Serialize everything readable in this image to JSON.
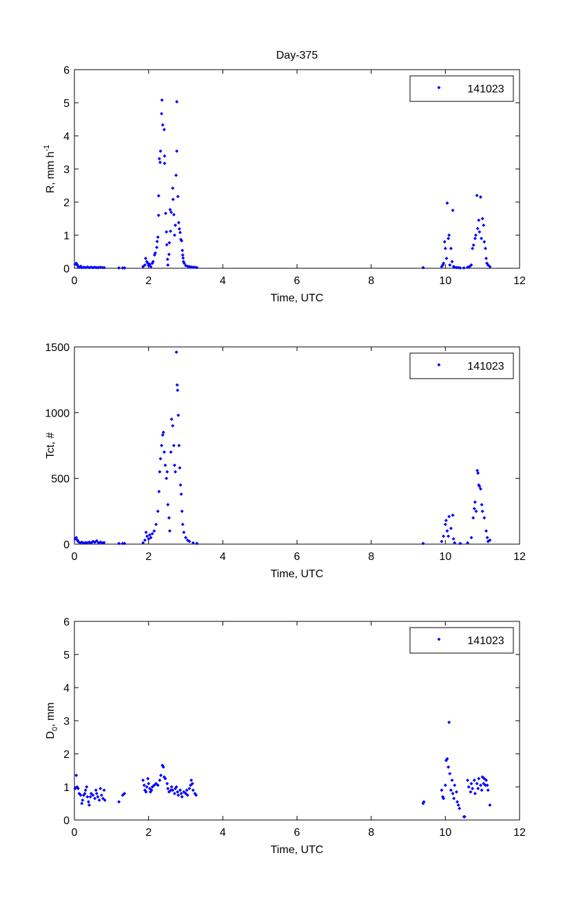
{
  "title": "Day-375",
  "colors": {
    "marker": "#0000ff",
    "axis": "#000000"
  },
  "chart_data": [
    {
      "type": "scatter",
      "xlabel": "Time, UTC",
      "ylabel_parts": {
        "base": "R, mm h",
        "sup": "-1"
      },
      "xlim": [
        0,
        12
      ],
      "ylim": [
        0,
        6
      ],
      "xticks": [
        "0",
        "2",
        "4",
        "6",
        "8",
        "10",
        "12"
      ],
      "yticks": [
        "0",
        "1",
        "2",
        "3",
        "4",
        "5",
        "6"
      ],
      "legend": {
        "label": "141023",
        "position": "top-right"
      },
      "points": [
        [
          0.02,
          0.12
        ],
        [
          0.05,
          0.15
        ],
        [
          0.08,
          0.1
        ],
        [
          0.1,
          0.05
        ],
        [
          0.13,
          0.03
        ],
        [
          0.17,
          0.06
        ],
        [
          0.2,
          0.02
        ],
        [
          0.25,
          0.03
        ],
        [
          0.3,
          0.02
        ],
        [
          0.35,
          0.04
        ],
        [
          0.4,
          0.02
        ],
        [
          0.45,
          0.03
        ],
        [
          0.5,
          0.02
        ],
        [
          0.55,
          0.03
        ],
        [
          0.6,
          0.02
        ],
        [
          0.65,
          0.02
        ],
        [
          0.7,
          0.03
        ],
        [
          0.75,
          0.02
        ],
        [
          0.8,
          0.02
        ],
        [
          1.2,
          0.01
        ],
        [
          1.3,
          0.01
        ],
        [
          1.35,
          0.01
        ],
        [
          1.85,
          0.05
        ],
        [
          1.9,
          0.1
        ],
        [
          1.92,
          0.3
        ],
        [
          1.95,
          0.2
        ],
        [
          1.98,
          0.15
        ],
        [
          2.0,
          0.08
        ],
        [
          2.03,
          0.12
        ],
        [
          2.06,
          0.05
        ],
        [
          2.1,
          0.15
        ],
        [
          2.12,
          0.2
        ],
        [
          2.16,
          0.4
        ],
        [
          2.18,
          0.46
        ],
        [
          2.22,
          0.63
        ],
        [
          2.23,
          0.81
        ],
        [
          2.25,
          0.94
        ],
        [
          2.27,
          1.6
        ],
        [
          2.27,
          2.19
        ],
        [
          2.29,
          3.31
        ],
        [
          2.31,
          3.2
        ],
        [
          2.32,
          3.54
        ],
        [
          2.35,
          4.67
        ],
        [
          2.36,
          5.08
        ],
        [
          2.38,
          4.33
        ],
        [
          2.42,
          4.19
        ],
        [
          2.43,
          3.39
        ],
        [
          2.43,
          3.17
        ],
        [
          2.46,
          1.66
        ],
        [
          2.48,
          1.1
        ],
        [
          2.49,
          0.71
        ],
        [
          2.51,
          0.27
        ],
        [
          2.52,
          0.1
        ],
        [
          2.55,
          0.42
        ],
        [
          2.56,
          0.77
        ],
        [
          2.58,
          1.77
        ],
        [
          2.59,
          1.12
        ],
        [
          2.61,
          1.69
        ],
        [
          2.65,
          2.42
        ],
        [
          2.66,
          2.08
        ],
        [
          2.68,
          1.62
        ],
        [
          2.7,
          1.0
        ],
        [
          2.72,
          1.3
        ],
        [
          2.74,
          2.81
        ],
        [
          2.76,
          5.03
        ],
        [
          2.76,
          3.54
        ],
        [
          2.79,
          2.17
        ],
        [
          2.81,
          1.38
        ],
        [
          2.83,
          1.19
        ],
        [
          2.85,
          1.08
        ],
        [
          2.87,
          0.87
        ],
        [
          2.89,
          0.83
        ],
        [
          2.91,
          0.54
        ],
        [
          2.92,
          0.4
        ],
        [
          2.93,
          0.31
        ],
        [
          2.94,
          0.2
        ],
        [
          2.96,
          0.15
        ],
        [
          3.0,
          0.08
        ],
        [
          3.05,
          0.06
        ],
        [
          3.1,
          0.05
        ],
        [
          3.15,
          0.04
        ],
        [
          3.2,
          0.03
        ],
        [
          3.25,
          0.03
        ],
        [
          3.3,
          0.02
        ],
        [
          9.4,
          0.02
        ],
        [
          9.9,
          0.05
        ],
        [
          9.93,
          0.1
        ],
        [
          9.95,
          0.15
        ],
        [
          9.98,
          0.8
        ],
        [
          10.0,
          0.6
        ],
        [
          10.03,
          0.3
        ],
        [
          10.05,
          1.97
        ],
        [
          10.08,
          0.9
        ],
        [
          10.1,
          1.0
        ],
        [
          10.12,
          0.1
        ],
        [
          10.15,
          0.6
        ],
        [
          10.18,
          0.2
        ],
        [
          10.2,
          1.75
        ],
        [
          10.22,
          0.05
        ],
        [
          10.25,
          0.03
        ],
        [
          10.3,
          0.02
        ],
        [
          10.35,
          0.02
        ],
        [
          10.4,
          0.01
        ],
        [
          10.5,
          0.01
        ],
        [
          10.6,
          0.03
        ],
        [
          10.65,
          0.05
        ],
        [
          10.7,
          0.1
        ],
        [
          10.73,
          0.6
        ],
        [
          10.76,
          0.7
        ],
        [
          10.8,
          0.9
        ],
        [
          10.82,
          1.0
        ],
        [
          10.85,
          2.2
        ],
        [
          10.87,
          1.2
        ],
        [
          10.9,
          1.45
        ],
        [
          10.92,
          1.1
        ],
        [
          10.95,
          2.15
        ],
        [
          10.97,
          0.9
        ],
        [
          11.0,
          1.5
        ],
        [
          11.03,
          1.3
        ],
        [
          11.05,
          0.8
        ],
        [
          11.08,
          0.6
        ],
        [
          11.1,
          0.3
        ],
        [
          11.12,
          0.15
        ],
        [
          11.15,
          0.1
        ],
        [
          11.2,
          0.05
        ]
      ]
    },
    {
      "type": "scatter",
      "xlabel": "Time, UTC",
      "ylabel_parts": {
        "base": "Tct, #",
        "sup": ""
      },
      "xlim": [
        0,
        12
      ],
      "ylim": [
        0,
        1500
      ],
      "xticks": [
        "0",
        "2",
        "4",
        "6",
        "8",
        "10",
        "12"
      ],
      "yticks": [
        "0",
        "500",
        "1000",
        "1500"
      ],
      "legend": {
        "label": "141023",
        "position": "top-right"
      },
      "points": [
        [
          0.02,
          40
        ],
        [
          0.05,
          50
        ],
        [
          0.08,
          30
        ],
        [
          0.1,
          20
        ],
        [
          0.15,
          10
        ],
        [
          0.2,
          15
        ],
        [
          0.25,
          8
        ],
        [
          0.3,
          12
        ],
        [
          0.35,
          10
        ],
        [
          0.4,
          15
        ],
        [
          0.45,
          10
        ],
        [
          0.5,
          20
        ],
        [
          0.55,
          15
        ],
        [
          0.6,
          25
        ],
        [
          0.65,
          10
        ],
        [
          0.7,
          15
        ],
        [
          0.75,
          10
        ],
        [
          0.8,
          12
        ],
        [
          1.2,
          5
        ],
        [
          1.3,
          5
        ],
        [
          1.35,
          5
        ],
        [
          1.85,
          10
        ],
        [
          1.9,
          30
        ],
        [
          1.93,
          90
        ],
        [
          1.96,
          60
        ],
        [
          2.0,
          40
        ],
        [
          2.03,
          70
        ],
        [
          2.06,
          50
        ],
        [
          2.1,
          80
        ],
        [
          2.15,
          100
        ],
        [
          2.2,
          150
        ],
        [
          2.25,
          250
        ],
        [
          2.28,
          400
        ],
        [
          2.3,
          550
        ],
        [
          2.32,
          650
        ],
        [
          2.35,
          750
        ],
        [
          2.38,
          830
        ],
        [
          2.4,
          850
        ],
        [
          2.42,
          700
        ],
        [
          2.45,
          600
        ],
        [
          2.48,
          500
        ],
        [
          2.5,
          550
        ],
        [
          2.52,
          300
        ],
        [
          2.55,
          200
        ],
        [
          2.57,
          100
        ],
        [
          2.6,
          700
        ],
        [
          2.62,
          950
        ],
        [
          2.65,
          900
        ],
        [
          2.68,
          750
        ],
        [
          2.7,
          600
        ],
        [
          2.72,
          550
        ],
        [
          2.75,
          1460
        ],
        [
          2.77,
          1210
        ],
        [
          2.78,
          1170
        ],
        [
          2.8,
          980
        ],
        [
          2.82,
          750
        ],
        [
          2.84,
          580
        ],
        [
          2.86,
          450
        ],
        [
          2.88,
          380
        ],
        [
          2.9,
          250
        ],
        [
          2.92,
          150
        ],
        [
          2.95,
          90
        ],
        [
          3.0,
          50
        ],
        [
          3.05,
          30
        ],
        [
          3.1,
          20
        ],
        [
          3.2,
          10
        ],
        [
          3.3,
          5
        ],
        [
          9.4,
          5
        ],
        [
          9.9,
          20
        ],
        [
          9.95,
          60
        ],
        [
          10.0,
          150
        ],
        [
          10.02,
          180
        ],
        [
          10.05,
          100
        ],
        [
          10.08,
          60
        ],
        [
          10.1,
          210
        ],
        [
          10.15,
          120
        ],
        [
          10.2,
          220
        ],
        [
          10.22,
          40
        ],
        [
          10.25,
          10
        ],
        [
          10.4,
          5
        ],
        [
          10.6,
          10
        ],
        [
          10.7,
          50
        ],
        [
          10.75,
          200
        ],
        [
          10.78,
          270
        ],
        [
          10.8,
          320
        ],
        [
          10.83,
          250
        ],
        [
          10.86,
          560
        ],
        [
          10.88,
          540
        ],
        [
          10.9,
          450
        ],
        [
          10.92,
          440
        ],
        [
          10.95,
          420
        ],
        [
          10.98,
          300
        ],
        [
          11.0,
          250
        ],
        [
          11.05,
          200
        ],
        [
          11.1,
          100
        ],
        [
          11.13,
          50
        ],
        [
          11.15,
          20
        ],
        [
          11.2,
          30
        ]
      ]
    },
    {
      "type": "scatter",
      "xlabel": "Time, UTC",
      "ylabel_parts": {
        "base": "D",
        "sub": "0",
        "rest": ", mm"
      },
      "xlim": [
        0,
        12
      ],
      "ylim": [
        0,
        6
      ],
      "xticks": [
        "0",
        "2",
        "4",
        "6",
        "8",
        "10",
        "12"
      ],
      "yticks": [
        "0",
        "1",
        "2",
        "3",
        "4",
        "5",
        "6"
      ],
      "legend": {
        "label": "141023",
        "position": "top-right"
      },
      "points": [
        [
          0.02,
          0.95
        ],
        [
          0.05,
          1.35
        ],
        [
          0.07,
          1.0
        ],
        [
          0.1,
          0.95
        ],
        [
          0.13,
          0.8
        ],
        [
          0.17,
          0.75
        ],
        [
          0.2,
          0.5
        ],
        [
          0.22,
          0.6
        ],
        [
          0.25,
          0.75
        ],
        [
          0.28,
          0.8
        ],
        [
          0.3,
          0.9
        ],
        [
          0.33,
          1.0
        ],
        [
          0.35,
          0.7
        ],
        [
          0.38,
          0.55
        ],
        [
          0.4,
          0.45
        ],
        [
          0.43,
          0.7
        ],
        [
          0.45,
          0.8
        ],
        [
          0.5,
          0.75
        ],
        [
          0.55,
          0.65
        ],
        [
          0.58,
          0.9
        ],
        [
          0.6,
          0.8
        ],
        [
          0.63,
          0.7
        ],
        [
          0.67,
          0.6
        ],
        [
          0.7,
          0.95
        ],
        [
          0.73,
          0.75
        ],
        [
          0.77,
          0.65
        ],
        [
          0.8,
          0.9
        ],
        [
          0.82,
          0.6
        ],
        [
          1.2,
          0.55
        ],
        [
          1.3,
          0.75
        ],
        [
          1.35,
          0.8
        ],
        [
          1.85,
          1.2
        ],
        [
          1.88,
          1.05
        ],
        [
          1.9,
          0.9
        ],
        [
          1.93,
          0.85
        ],
        [
          1.95,
          1.0
        ],
        [
          1.98,
          1.25
        ],
        [
          2.0,
          1.1
        ],
        [
          2.03,
          0.95
        ],
        [
          2.05,
          0.85
        ],
        [
          2.08,
          0.9
        ],
        [
          2.1,
          1.0
        ],
        [
          2.15,
          1.05
        ],
        [
          2.2,
          1.1
        ],
        [
          2.25,
          1.05
        ],
        [
          2.3,
          1.2
        ],
        [
          2.33,
          1.35
        ],
        [
          2.37,
          1.65
        ],
        [
          2.4,
          1.6
        ],
        [
          2.42,
          1.3
        ],
        [
          2.45,
          1.25
        ],
        [
          2.5,
          1.1
        ],
        [
          2.52,
          0.95
        ],
        [
          2.55,
          0.85
        ],
        [
          2.6,
          0.9
        ],
        [
          2.62,
          1.0
        ],
        [
          2.65,
          0.9
        ],
        [
          2.7,
          0.8
        ],
        [
          2.72,
          0.95
        ],
        [
          2.75,
          1.0
        ],
        [
          2.78,
          0.85
        ],
        [
          2.8,
          0.75
        ],
        [
          2.85,
          0.9
        ],
        [
          2.88,
          0.8
        ],
        [
          2.9,
          0.7
        ],
        [
          2.95,
          0.85
        ],
        [
          3.0,
          0.8
        ],
        [
          3.03,
          0.9
        ],
        [
          3.05,
          0.75
        ],
        [
          3.1,
          0.95
        ],
        [
          3.13,
          1.05
        ],
        [
          3.15,
          1.2
        ],
        [
          3.18,
          1.1
        ],
        [
          3.2,
          0.9
        ],
        [
          3.25,
          0.8
        ],
        [
          3.28,
          0.75
        ],
        [
          9.4,
          0.5
        ],
        [
          9.42,
          0.55
        ],
        [
          9.9,
          0.9
        ],
        [
          9.93,
          0.7
        ],
        [
          9.95,
          0.65
        ],
        [
          10.0,
          1.05
        ],
        [
          10.02,
          1.8
        ],
        [
          10.05,
          1.85
        ],
        [
          10.08,
          1.6
        ],
        [
          10.1,
          2.95
        ],
        [
          10.12,
          1.4
        ],
        [
          10.15,
          0.9
        ],
        [
          10.18,
          1.2
        ],
        [
          10.2,
          0.8
        ],
        [
          10.23,
          0.65
        ],
        [
          10.25,
          1.05
        ],
        [
          10.3,
          0.85
        ],
        [
          10.32,
          0.55
        ],
        [
          10.35,
          0.45
        ],
        [
          10.38,
          0.35
        ],
        [
          10.5,
          0.1
        ],
        [
          10.52,
          0.1
        ],
        [
          10.6,
          1.2
        ],
        [
          10.63,
          1.0
        ],
        [
          10.68,
          0.85
        ],
        [
          10.7,
          1.1
        ],
        [
          10.73,
          0.95
        ],
        [
          10.78,
          1.2
        ],
        [
          10.8,
          0.8
        ],
        [
          10.85,
          1.1
        ],
        [
          10.88,
          0.95
        ],
        [
          10.9,
          1.25
        ],
        [
          10.95,
          1.05
        ],
        [
          10.98,
          0.9
        ],
        [
          11.0,
          1.3
        ],
        [
          11.03,
          1.1
        ],
        [
          11.05,
          1.25
        ],
        [
          11.08,
          1.05
        ],
        [
          11.1,
          1.2
        ],
        [
          11.13,
          1.05
        ],
        [
          11.15,
          0.9
        ],
        [
          11.2,
          0.45
        ]
      ]
    }
  ]
}
